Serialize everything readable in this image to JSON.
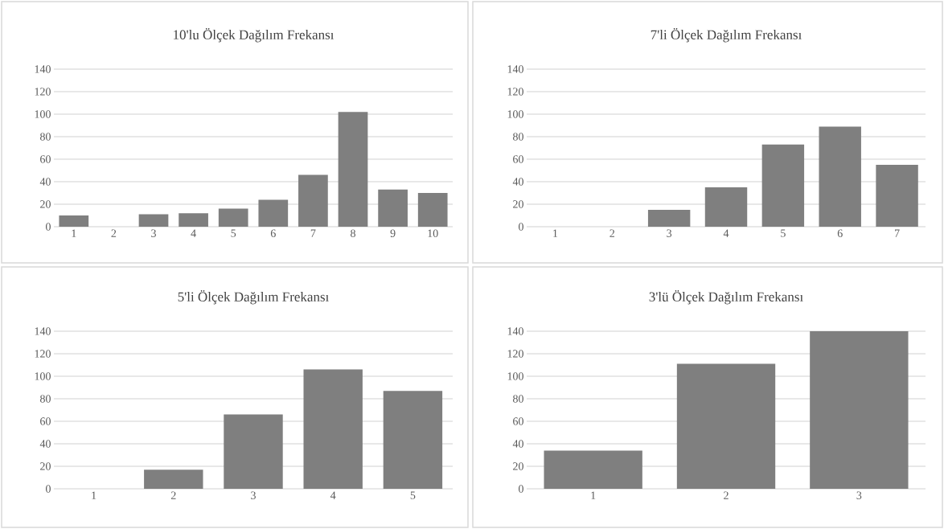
{
  "chart_data": [
    {
      "type": "bar",
      "title": "10'lu Ölçek Dağılım Frekansı",
      "categories": [
        "1",
        "2",
        "3",
        "4",
        "5",
        "6",
        "7",
        "8",
        "9",
        "10"
      ],
      "values": [
        10,
        0,
        11,
        12,
        16,
        24,
        46,
        102,
        33,
        30
      ],
      "color": "#7f7f7f",
      "ylim": [
        0,
        140
      ],
      "yticks": [
        0,
        20,
        40,
        60,
        80,
        100,
        120,
        140
      ],
      "grid": "y"
    },
    {
      "type": "bar",
      "title": "7'li Ölçek Dağılım Frekansı",
      "categories": [
        "1",
        "2",
        "3",
        "4",
        "5",
        "6",
        "7"
      ],
      "values": [
        0,
        0,
        15,
        35,
        73,
        89,
        55
      ],
      "color": "#7f7f7f",
      "ylim": [
        0,
        140
      ],
      "yticks": [
        0,
        20,
        40,
        60,
        80,
        100,
        120,
        140
      ],
      "grid": "y"
    },
    {
      "type": "bar",
      "title": "5'li Ölçek Dağılım Frekansı",
      "categories": [
        "1",
        "2",
        "3",
        "4",
        "5"
      ],
      "values": [
        0,
        17,
        66,
        106,
        87
      ],
      "color": "#7f7f7f",
      "ylim": [
        0,
        140
      ],
      "yticks": [
        0,
        20,
        40,
        60,
        80,
        100,
        120,
        140
      ],
      "grid": "y"
    },
    {
      "type": "bar",
      "title": "3'lü Ölçek Dağılım Frekansı",
      "categories": [
        "1",
        "2",
        "3"
      ],
      "values": [
        34,
        111,
        140
      ],
      "color": "#7f7f7f",
      "ylim": [
        0,
        140
      ],
      "yticks": [
        0,
        20,
        40,
        60,
        80,
        100,
        120,
        140
      ],
      "grid": "y"
    }
  ]
}
